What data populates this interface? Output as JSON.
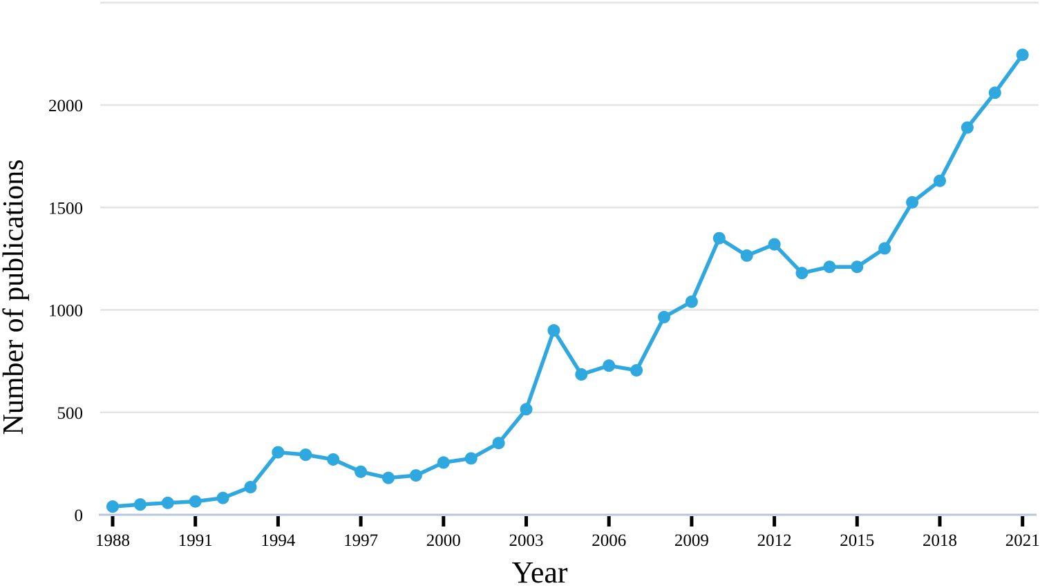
{
  "chart_data": {
    "type": "line",
    "title": "",
    "xlabel": "Year",
    "ylabel": "Number of publications",
    "x": [
      1988,
      1989,
      1990,
      1991,
      1992,
      1993,
      1994,
      1995,
      1996,
      1997,
      1998,
      1999,
      2000,
      2001,
      2002,
      2003,
      2004,
      2005,
      2006,
      2007,
      2008,
      2009,
      2010,
      2011,
      2012,
      2013,
      2014,
      2015,
      2016,
      2017,
      2018,
      2019,
      2020,
      2021
    ],
    "series": [
      {
        "name": "Number of publications",
        "color": "#2EA8DF",
        "marker": "circle",
        "values": [
          40,
          50,
          58,
          65,
          82,
          135,
          305,
          293,
          270,
          210,
          180,
          192,
          255,
          275,
          350,
          515,
          900,
          685,
          728,
          705,
          965,
          1040,
          1350,
          1265,
          1320,
          1180,
          1210,
          1210,
          1300,
          1525,
          1630,
          1890,
          2060,
          2245
        ]
      }
    ],
    "x_tick_labels": [
      "1988",
      "1991",
      "1994",
      "1997",
      "2000",
      "2003",
      "2006",
      "2009",
      "2012",
      "2015",
      "2018",
      "2021"
    ],
    "y_tick_labels": [
      "0",
      "500",
      "1000",
      "1500",
      "2000"
    ],
    "y_gridline_values": [
      500,
      1000,
      1500,
      2000,
      2500
    ],
    "xlim": [
      1987.5,
      2021.6
    ],
    "ylim": [
      0,
      2500
    ],
    "grid": "horizontal-only",
    "legend": "none",
    "colors": {
      "line": "#2EA8DF",
      "gridline": "#e4e4e4",
      "axis_line": "#b7c5e0",
      "tick": "#000000",
      "text": "#000000"
    }
  }
}
